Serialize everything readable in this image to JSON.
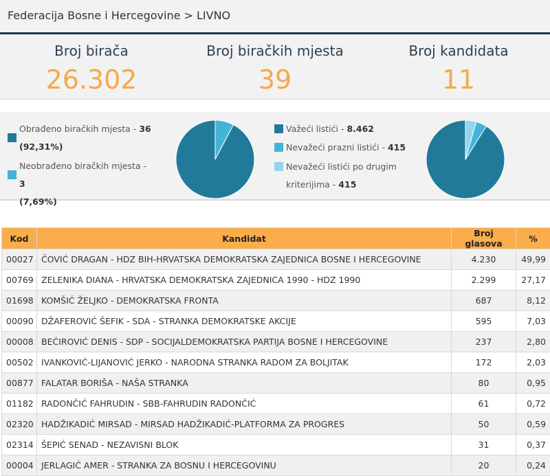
{
  "breadcrumb": "Federacija Bosne i Hercegovine > LIVNO",
  "stats": [
    {
      "label": "Broj birača",
      "value": "26.302"
    },
    {
      "label": "Broj biračkih mjesta",
      "value": "39"
    },
    {
      "label": "Broj kandidata",
      "value": "11"
    }
  ],
  "stations": {
    "processed_label": "Obrađeno biračkih mjesta - ",
    "processed_value": "36",
    "processed_pct": "(92,31%)",
    "unprocessed_label": "Neobrađeno biračkih mjesta - ",
    "unprocessed_value": "3",
    "unprocessed_pct": "(7,69%)",
    "pie": [
      92.31,
      7.69
    ]
  },
  "ballots": {
    "valid_label": "Važeći listići - ",
    "valid_value": "8.462",
    "blank_label": "Nevažeći prazni listići - ",
    "blank_value": "415",
    "other_label_1": "Nevažeći listići po drugim",
    "other_label_2": "kriterijima - ",
    "other_value": "415",
    "pie": [
      8462,
      415,
      415
    ]
  },
  "colors": {
    "primary": "#217a9a",
    "secondary": "#44b3d9",
    "tertiary": "#93d4ec",
    "accent": "#f5a94a",
    "header": "#f9ad4b"
  },
  "table": {
    "headers": [
      "Kod",
      "Kandidat",
      "Broj glasova",
      "%"
    ],
    "rows": [
      [
        "00027",
        "ČOVIĆ DRAGAN - HDZ BIH-HRVATSKA DEMOKRATSKA ZAJEDNICA BOSNE I HERCEGOVINE",
        "4.230",
        "49,99"
      ],
      [
        "00769",
        "ZELENIKA DIANA - HRVATSKA DEMOKRATSKA ZAJEDNICA 1990 - HDZ 1990",
        "2.299",
        "27,17"
      ],
      [
        "01698",
        "KOMŠIĆ ŽELJKO - DEMOKRATSKA FRONTA",
        "687",
        "8,12"
      ],
      [
        "00090",
        "DŽAFEROVIĆ ŠEFIK - SDA - STRANKA DEMOKRATSKE AKCIJE",
        "595",
        "7,03"
      ],
      [
        "00008",
        "BEĆIROVIĆ DENIS - SDP - SOCIJALDEMOKRATSKA PARTIJA BOSNE I HERCEGOVINE",
        "237",
        "2,80"
      ],
      [
        "00502",
        "IVANKOVIĆ-LIJANOVIĆ JERKO - NARODNA STRANKA RADOM ZA BOLJITAK",
        "172",
        "2,03"
      ],
      [
        "00877",
        "FALATAR BORIŠA - NAŠA STRANKA",
        "80",
        "0,95"
      ],
      [
        "01182",
        "RADONČIĆ FAHRUDIN - SBB-FAHRUDIN RADONČIĆ",
        "61",
        "0,72"
      ],
      [
        "02320",
        "HADŽIKADIĆ MIRSAD - MIRSAD HADŽIKADIĆ-PLATFORMA ZA PROGRES",
        "50",
        "0,59"
      ],
      [
        "02314",
        "ŠEPIĆ SENAD - NEZAVISNI BLOK",
        "31",
        "0,37"
      ],
      [
        "00004",
        "JERLAGIĆ AMER - STRANKA ZA BOSNU I HERCEGOVINU",
        "20",
        "0,24"
      ]
    ]
  }
}
